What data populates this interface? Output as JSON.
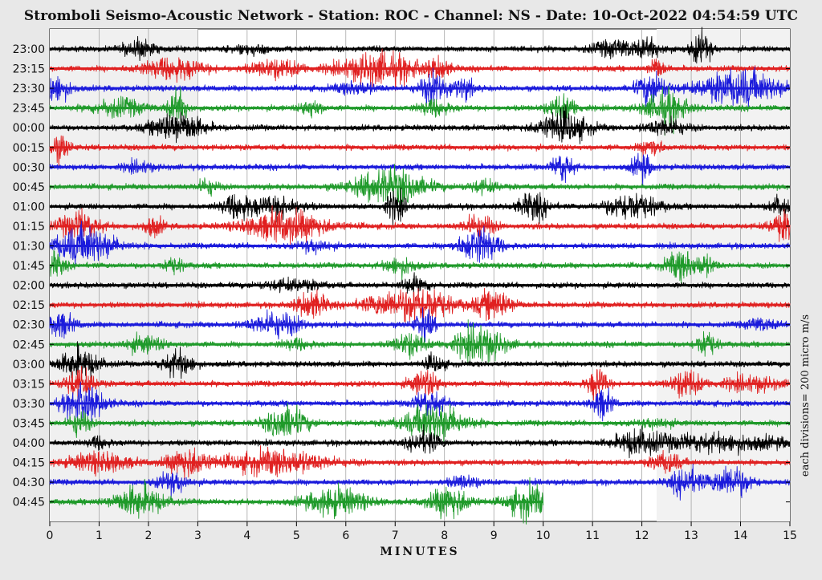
{
  "chart_data": {
    "type": "line",
    "title": "Stromboli Seismo-Acoustic Network - Station: ROC - Channel: NS - Date: 10-Oct-2022 04:54:59 UTC",
    "xlabel": "MINUTES",
    "ylabel_right": "each divisions= 200 micro m/s",
    "xlim": [
      0,
      15
    ],
    "x_ticks": [
      0,
      1,
      2,
      3,
      4,
      5,
      6,
      7,
      8,
      9,
      10,
      11,
      12,
      13,
      14,
      15
    ],
    "grid": "vertical",
    "trace_colors": [
      "#000000",
      "#e02020",
      "#1a1adb",
      "#1f9a2a"
    ],
    "rows": [
      {
        "label": "23:00",
        "end": 15,
        "bursts": [
          [
            1.8,
            0.3,
            0.9
          ],
          [
            4.1,
            0.4,
            0.4
          ],
          [
            11.5,
            0.5,
            0.8
          ],
          [
            12.2,
            0.3,
            0.7
          ],
          [
            13.2,
            0.2,
            1.6
          ]
        ]
      },
      {
        "label": "23:15",
        "end": 15,
        "bursts": [
          [
            2.5,
            0.6,
            1.1
          ],
          [
            4.6,
            0.5,
            0.9
          ],
          [
            6.7,
            0.8,
            1.6
          ],
          [
            7.9,
            0.2,
            1.0
          ],
          [
            12.3,
            0.15,
            1.2
          ]
        ]
      },
      {
        "label": "23:30",
        "end": 15,
        "bursts": [
          [
            0.1,
            0.3,
            1.4
          ],
          [
            6.2,
            0.4,
            0.6
          ],
          [
            7.8,
            0.3,
            1.6
          ],
          [
            8.4,
            0.2,
            1.0
          ],
          [
            12.2,
            0.3,
            1.6
          ],
          [
            14.0,
            0.8,
            1.8
          ]
        ]
      },
      {
        "label": "23:45",
        "end": 15,
        "bursts": [
          [
            1.4,
            0.5,
            0.9
          ],
          [
            2.6,
            0.2,
            1.6
          ],
          [
            5.3,
            0.2,
            0.9
          ],
          [
            7.8,
            0.3,
            0.8
          ],
          [
            10.4,
            0.3,
            1.2
          ],
          [
            12.5,
            0.4,
            1.8
          ]
        ]
      },
      {
        "label": "00:00",
        "end": 15,
        "bursts": [
          [
            2.6,
            0.5,
            1.6
          ],
          [
            10.4,
            0.5,
            1.6
          ],
          [
            12.5,
            0.4,
            0.8
          ]
        ]
      },
      {
        "label": "00:15",
        "end": 15,
        "bursts": [
          [
            0.2,
            0.2,
            1.2
          ],
          [
            12.2,
            0.2,
            1.0
          ]
        ]
      },
      {
        "label": "00:30",
        "end": 15,
        "bursts": [
          [
            1.8,
            0.3,
            0.5
          ],
          [
            10.4,
            0.2,
            1.5
          ],
          [
            12.0,
            0.2,
            1.3
          ]
        ]
      },
      {
        "label": "00:45",
        "end": 15,
        "bursts": [
          [
            3.2,
            0.2,
            0.8
          ],
          [
            6.9,
            0.7,
            1.8
          ],
          [
            8.8,
            0.3,
            0.6
          ]
        ]
      },
      {
        "label": "01:00",
        "end": 15,
        "bursts": [
          [
            3.8,
            0.3,
            1.2
          ],
          [
            4.6,
            0.5,
            1.0
          ],
          [
            7.0,
            0.2,
            1.5
          ],
          [
            9.8,
            0.3,
            1.3
          ],
          [
            11.8,
            0.5,
            1.4
          ],
          [
            14.8,
            0.2,
            1.0
          ]
        ]
      },
      {
        "label": "01:15",
        "end": 15,
        "bursts": [
          [
            0.6,
            0.4,
            1.4
          ],
          [
            2.1,
            0.2,
            1.0
          ],
          [
            4.8,
            0.8,
            1.6
          ],
          [
            8.7,
            0.3,
            1.2
          ],
          [
            14.9,
            0.3,
            1.3
          ]
        ]
      },
      {
        "label": "01:30",
        "end": 15,
        "bursts": [
          [
            0.7,
            0.6,
            1.9
          ],
          [
            5.4,
            0.3,
            0.6
          ],
          [
            8.7,
            0.4,
            1.8
          ]
        ]
      },
      {
        "label": "01:45",
        "end": 15,
        "bursts": [
          [
            0.1,
            0.2,
            1.2
          ],
          [
            2.5,
            0.2,
            0.8
          ],
          [
            7.1,
            0.3,
            0.9
          ],
          [
            12.8,
            0.3,
            1.5
          ],
          [
            13.3,
            0.2,
            0.9
          ]
        ]
      },
      {
        "label": "02:00",
        "end": 15,
        "bursts": [
          [
            4.9,
            0.6,
            0.5
          ],
          [
            7.4,
            0.3,
            0.8
          ]
        ]
      },
      {
        "label": "02:15",
        "end": 15,
        "bursts": [
          [
            5.3,
            0.3,
            1.4
          ],
          [
            6.8,
            0.5,
            1.0
          ],
          [
            7.6,
            0.5,
            1.9
          ],
          [
            9.0,
            0.4,
            1.4
          ]
        ]
      },
      {
        "label": "02:30",
        "end": 15,
        "bursts": [
          [
            0.2,
            0.3,
            1.2
          ],
          [
            4.6,
            0.5,
            1.2
          ],
          [
            7.6,
            0.2,
            1.4
          ],
          [
            14.4,
            0.3,
            0.6
          ]
        ]
      },
      {
        "label": "02:45",
        "end": 15,
        "bursts": [
          [
            1.9,
            0.4,
            0.8
          ],
          [
            5.0,
            0.3,
            0.5
          ],
          [
            7.3,
            0.3,
            1.2
          ],
          [
            8.7,
            0.5,
            1.8
          ],
          [
            13.3,
            0.2,
            1.4
          ]
        ]
      },
      {
        "label": "03:00",
        "end": 15,
        "bursts": [
          [
            0.6,
            0.4,
            1.5
          ],
          [
            2.6,
            0.3,
            1.3
          ],
          [
            7.8,
            0.2,
            0.8
          ]
        ]
      },
      {
        "label": "03:15",
        "end": 15,
        "bursts": [
          [
            0.6,
            0.3,
            1.5
          ],
          [
            7.6,
            0.3,
            1.2
          ],
          [
            11.1,
            0.2,
            1.6
          ],
          [
            12.9,
            0.3,
            1.4
          ],
          [
            14.2,
            0.6,
            0.7
          ]
        ]
      },
      {
        "label": "03:30",
        "end": 15,
        "bursts": [
          [
            0.7,
            0.4,
            1.9
          ],
          [
            7.7,
            0.3,
            1.3
          ],
          [
            11.2,
            0.2,
            1.5
          ]
        ]
      },
      {
        "label": "03:45",
        "end": 15,
        "bursts": [
          [
            0.6,
            0.2,
            1.3
          ],
          [
            4.8,
            0.4,
            1.7
          ],
          [
            7.8,
            0.6,
            1.9
          ],
          [
            12.3,
            0.3,
            0.5
          ]
        ]
      },
      {
        "label": "04:00",
        "end": 15,
        "bursts": [
          [
            1.0,
            0.2,
            0.6
          ],
          [
            7.6,
            0.3,
            1.2
          ],
          [
            11.9,
            0.4,
            1.1
          ],
          [
            13.5,
            1.5,
            0.8
          ]
        ]
      },
      {
        "label": "04:15",
        "end": 15,
        "bursts": [
          [
            1.0,
            0.6,
            1.0
          ],
          [
            2.8,
            0.4,
            1.5
          ],
          [
            4.6,
            1.0,
            1.2
          ],
          [
            12.5,
            0.3,
            1.0
          ]
        ]
      },
      {
        "label": "04:30",
        "end": 15,
        "bursts": [
          [
            2.5,
            0.3,
            1.0
          ],
          [
            8.4,
            0.3,
            0.6
          ],
          [
            12.9,
            0.3,
            1.4
          ],
          [
            13.8,
            0.4,
            1.6
          ]
        ]
      },
      {
        "label": "04:45",
        "end": 10,
        "bursts": [
          [
            1.8,
            0.5,
            1.6
          ],
          [
            5.8,
            0.6,
            1.4
          ],
          [
            8.1,
            0.4,
            1.6
          ],
          [
            9.7,
            0.4,
            1.7
          ]
        ]
      }
    ]
  }
}
